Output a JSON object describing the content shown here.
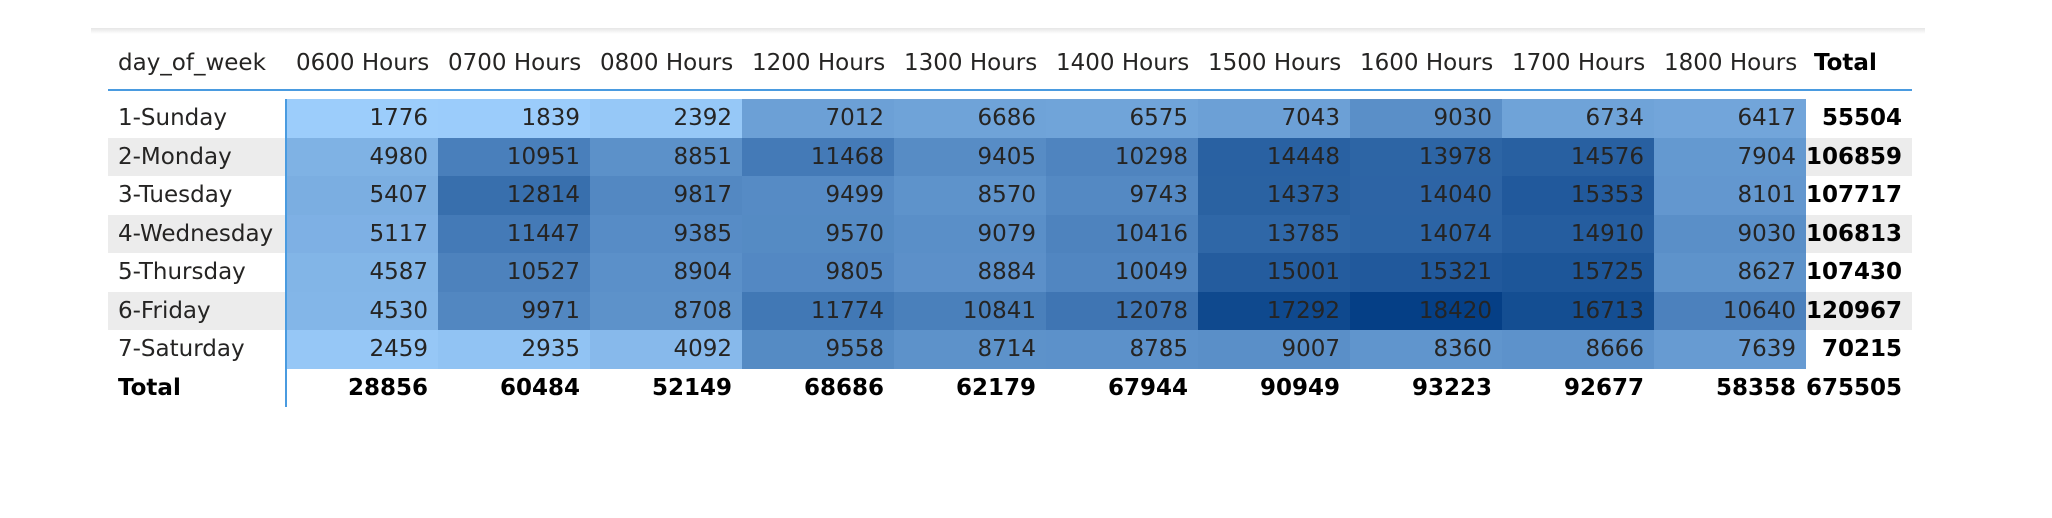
{
  "chart_data": {
    "type": "heatmap",
    "row_header_label": "day_of_week",
    "columns": [
      "0600 Hours",
      "0700 Hours",
      "0800 Hours",
      "1200 Hours",
      "1300 Hours",
      "1400 Hours",
      "1500 Hours",
      "1600 Hours",
      "1700 Hours",
      "1800 Hours"
    ],
    "total_label": "Total",
    "rows": [
      {
        "label": "1-Sunday",
        "values": [
          1776,
          1839,
          2392,
          7012,
          6686,
          6575,
          7043,
          9030,
          6734,
          6417
        ],
        "total": 55504
      },
      {
        "label": "2-Monday",
        "values": [
          4980,
          10951,
          8851,
          11468,
          9405,
          10298,
          14448,
          13978,
          14576,
          7904
        ],
        "total": 106859
      },
      {
        "label": "3-Tuesday",
        "values": [
          5407,
          12814,
          9817,
          9499,
          8570,
          9743,
          14373,
          14040,
          15353,
          8101
        ],
        "total": 107717
      },
      {
        "label": "4-Wednesday",
        "values": [
          5117,
          11447,
          9385,
          9570,
          9079,
          10416,
          13785,
          14074,
          14910,
          9030
        ],
        "total": 106813
      },
      {
        "label": "5-Thursday",
        "values": [
          4587,
          10527,
          8904,
          9805,
          8884,
          10049,
          15001,
          15321,
          15725,
          8627
        ],
        "total": 107430
      },
      {
        "label": "6-Friday",
        "values": [
          4530,
          9971,
          8708,
          11774,
          10841,
          12078,
          17292,
          18420,
          16713,
          10640
        ],
        "total": 120967
      },
      {
        "label": "7-Saturday",
        "values": [
          2459,
          2935,
          4092,
          9558,
          8714,
          8785,
          9007,
          8360,
          8666,
          7639
        ],
        "total": 70215
      }
    ],
    "column_totals": [
      28856,
      60484,
      52149,
      68686,
      62179,
      67944,
      90949,
      93223,
      92677,
      58358
    ],
    "grand_total": 675505,
    "color_scale": {
      "min_color": "#9ccdfb",
      "max_color": "#053f86"
    },
    "banded_rows": true
  }
}
